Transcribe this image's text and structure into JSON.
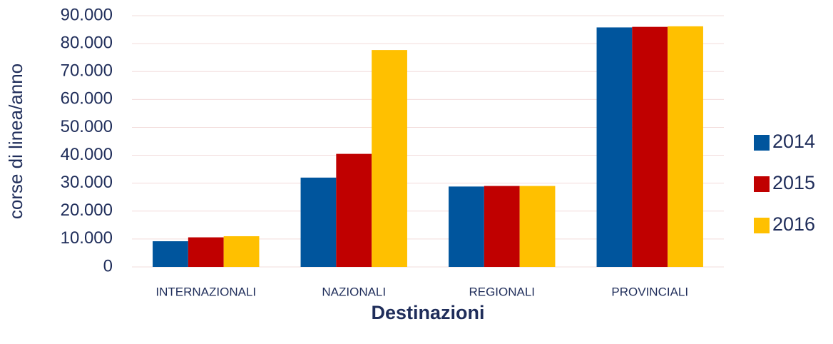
{
  "chart_data": {
    "type": "bar",
    "xlabel": "Destinazioni",
    "ylabel": "corse di linea/anno",
    "categories": [
      "INTERNAZIONALI",
      "NAZIONALI",
      "REGIONALI",
      "PROVINCIALI"
    ],
    "series": [
      {
        "name": "2014",
        "color": "#00559d",
        "values": [
          9200,
          32000,
          28800,
          85800
        ]
      },
      {
        "name": "2015",
        "color": "#c00000",
        "values": [
          10600,
          40500,
          29000,
          86000
        ]
      },
      {
        "name": "2016",
        "color": "#ffc000",
        "values": [
          11000,
          77700,
          29000,
          86200
        ]
      }
    ],
    "ylim": [
      0,
      90000
    ],
    "yticks": [
      0,
      {
        "value": 10000,
        "label": "10.000"
      },
      {
        "value": 20000,
        "label": "20.000"
      },
      {
        "value": 30000,
        "label": "30.000"
      },
      {
        "value": 40000,
        "label": "40.000"
      },
      {
        "value": 50000,
        "label": "50.000"
      },
      {
        "value": 60000,
        "label": "60.000"
      },
      {
        "value": 70000,
        "label": "70.000"
      },
      {
        "value": 80000,
        "label": "80.000"
      },
      {
        "value": 90000,
        "label": "90.000"
      }
    ],
    "grid": true,
    "legend": "right"
  }
}
